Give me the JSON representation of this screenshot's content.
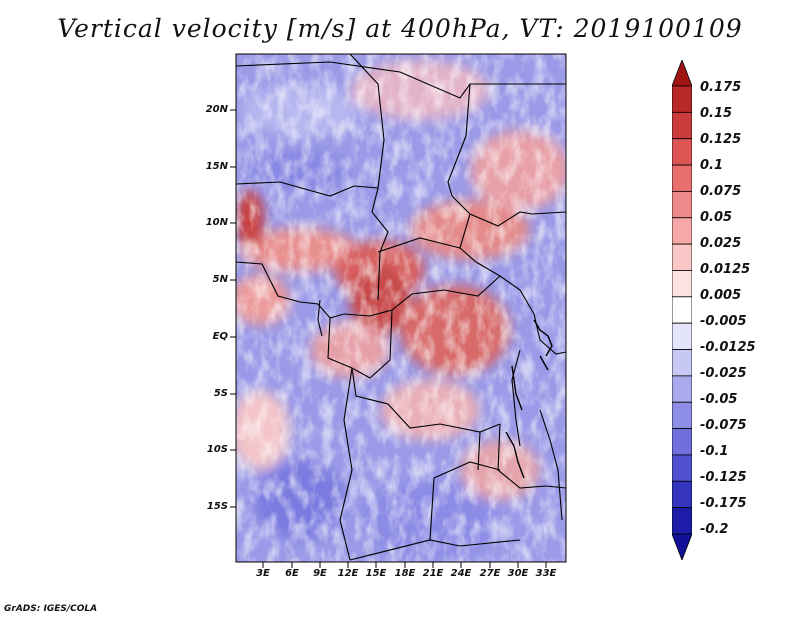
{
  "title": "Vertical velocity [m/s] at 400hPa, VT: 2019100109",
  "credit": "GrADS: IGES/COLA",
  "chart_data": {
    "type": "heatmap",
    "variable": "Vertical velocity [m/s] at 400hPa",
    "valid_time": "2019100109",
    "lat_ticks": [
      "20N",
      "15N",
      "10N",
      "5N",
      "EQ",
      "5S",
      "10S",
      "15S"
    ],
    "lon_ticks": [
      "3E",
      "6E",
      "9E",
      "12E",
      "15E",
      "18E",
      "21E",
      "24E",
      "27E",
      "30E",
      "33E"
    ],
    "colorbar": {
      "labels": [
        "0.175",
        "0.15",
        "0.125",
        "0.1",
        "0.075",
        "0.05",
        "0.025",
        "0.0125",
        "0.005",
        "-0.005",
        "-0.0125",
        "-0.025",
        "-0.05",
        "-0.075",
        "-0.1",
        "-0.125",
        "-0.175",
        "-0.2"
      ],
      "colors": [
        "#a01414",
        "#b82828",
        "#cc3c3c",
        "#dc5454",
        "#e86e6e",
        "#f08a8a",
        "#f6a8a8",
        "#fac6c6",
        "#fde2e2",
        "#ffffff",
        "#e4e4fa",
        "#c8c8f4",
        "#aaaaee",
        "#8e8ee6",
        "#7070dc",
        "#5252d0",
        "#3434bc",
        "#1c1ca8",
        "#10109a"
      ]
    }
  }
}
